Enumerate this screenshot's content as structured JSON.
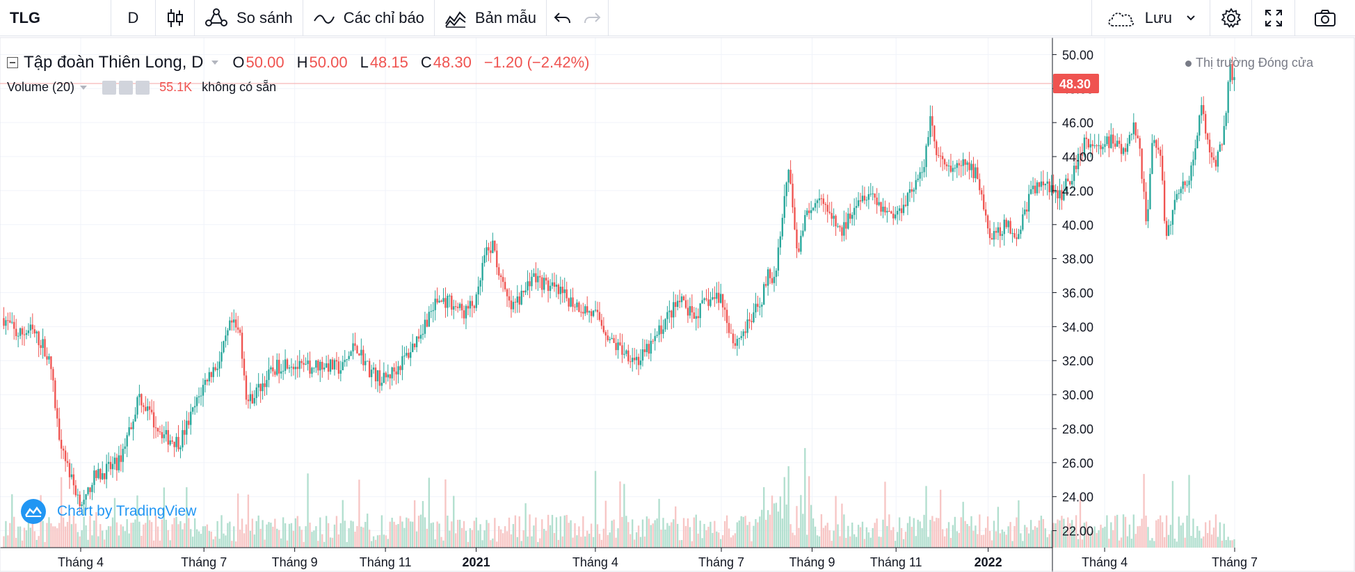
{
  "toolbar": {
    "symbol": "TLG",
    "interval": "D",
    "compare_label": "So sánh",
    "indicators_label": "Các chỉ báo",
    "templates_label": "Bản mẫu",
    "save_label": "Lưu",
    "icons": [
      "candles-icon",
      "compare-icon",
      "indicators-icon",
      "templates-icon",
      "undo-icon",
      "redo-icon",
      "cloud-icon",
      "chevron-down-icon",
      "gear-icon",
      "fullscreen-icon",
      "camera-icon"
    ]
  },
  "legend": {
    "name": "Tập đoàn Thiên Long, D",
    "open_label": "O",
    "open": "50.00",
    "high_label": "H",
    "high": "50.00",
    "low_label": "L",
    "low": "48.15",
    "close_label": "C",
    "close": "48.30",
    "change": "−1.20 (−2.42%)"
  },
  "volume_legend": {
    "label": "Volume (20)",
    "value": "55.1K",
    "na": "không có sẵn"
  },
  "market_status": "Thị trường Đóng cửa",
  "brand": "Chart by TradingView",
  "colors": {
    "up": "#26a69a",
    "down": "#ef5350",
    "up_vol": "#b2dfcf",
    "down_vol": "#f7c6c5",
    "grid": "#f0f3fa",
    "last_price_line": "#f5a5a5"
  },
  "chart_data": {
    "type": "candlestick",
    "title": "Tập đoàn Thiên Long, D",
    "ylim": [
      21,
      51
    ],
    "yticks": [
      "22.00",
      "24.00",
      "26.00",
      "28.00",
      "30.00",
      "32.00",
      "34.00",
      "36.00",
      "38.00",
      "40.00",
      "42.00",
      "44.00",
      "46.00",
      "48.00",
      "50.00"
    ],
    "last_price_label": "48.30",
    "last_price": 48.3,
    "x_tick_labels": [
      {
        "label": "Tháng 4",
        "pos": 0.058
      },
      {
        "label": "Tháng 7",
        "pos": 0.149
      },
      {
        "label": "Tháng 9",
        "pos": 0.216
      },
      {
        "label": "Tháng 11",
        "pos": 0.283
      },
      {
        "label": "2021",
        "pos": 0.35,
        "bold": true
      },
      {
        "label": "Tháng 4",
        "pos": 0.438
      },
      {
        "label": "Tháng 7",
        "pos": 0.531
      },
      {
        "label": "Tháng 9",
        "pos": 0.598
      },
      {
        "label": "Tháng 11",
        "pos": 0.66
      },
      {
        "label": "2022",
        "pos": 0.728,
        "bold": true
      },
      {
        "label": "Tháng 4",
        "pos": 0.814
      },
      {
        "label": "Tháng 7",
        "pos": 0.91
      }
    ],
    "price_path": [
      [
        0.0,
        34.5
      ],
      [
        0.01,
        33.5
      ],
      [
        0.02,
        33.8
      ],
      [
        0.03,
        32.8
      ],
      [
        0.035,
        31.5
      ],
      [
        0.04,
        28
      ],
      [
        0.045,
        26.5
      ],
      [
        0.05,
        25.0
      ],
      [
        0.055,
        24.0
      ],
      [
        0.06,
        23.5
      ],
      [
        0.065,
        25.0
      ],
      [
        0.075,
        25.5
      ],
      [
        0.085,
        26.0
      ],
      [
        0.095,
        28.5
      ],
      [
        0.1,
        30.0
      ],
      [
        0.11,
        28.5
      ],
      [
        0.12,
        27.5
      ],
      [
        0.13,
        27.2
      ],
      [
        0.14,
        29.0
      ],
      [
        0.15,
        31.0
      ],
      [
        0.16,
        32.0
      ],
      [
        0.168,
        34.2
      ],
      [
        0.175,
        33.5
      ],
      [
        0.18,
        29.5
      ],
      [
        0.19,
        30.5
      ],
      [
        0.2,
        31.5
      ],
      [
        0.21,
        32.0
      ],
      [
        0.22,
        31.5
      ],
      [
        0.235,
        31.8
      ],
      [
        0.25,
        31.5
      ],
      [
        0.26,
        33.0
      ],
      [
        0.27,
        31.5
      ],
      [
        0.28,
        30.8
      ],
      [
        0.29,
        31.5
      ],
      [
        0.3,
        32.5
      ],
      [
        0.31,
        34.0
      ],
      [
        0.32,
        35.5
      ],
      [
        0.33,
        35.5
      ],
      [
        0.34,
        34.8
      ],
      [
        0.35,
        35.5
      ],
      [
        0.355,
        38.0
      ],
      [
        0.362,
        38.8
      ],
      [
        0.368,
        36.5
      ],
      [
        0.375,
        35.0
      ],
      [
        0.385,
        36.0
      ],
      [
        0.39,
        37.0
      ],
      [
        0.4,
        36.5
      ],
      [
        0.41,
        36.0
      ],
      [
        0.42,
        35.5
      ],
      [
        0.43,
        35.0
      ],
      [
        0.44,
        34.5
      ],
      [
        0.45,
        33.0
      ],
      [
        0.46,
        32.5
      ],
      [
        0.47,
        32.0
      ],
      [
        0.48,
        33.0
      ],
      [
        0.49,
        34.5
      ],
      [
        0.5,
        35.5
      ],
      [
        0.51,
        34.5
      ],
      [
        0.52,
        35.5
      ],
      [
        0.53,
        35.8
      ],
      [
        0.54,
        33.0
      ],
      [
        0.55,
        34.0
      ],
      [
        0.56,
        35.5
      ],
      [
        0.565,
        37.0
      ],
      [
        0.57,
        36.5
      ],
      [
        0.575,
        40.0
      ],
      [
        0.58,
        43.5
      ],
      [
        0.587,
        38.5
      ],
      [
        0.595,
        41.0
      ],
      [
        0.605,
        42.0
      ],
      [
        0.61,
        40.5
      ],
      [
        0.62,
        39.5
      ],
      [
        0.63,
        41.5
      ],
      [
        0.64,
        42.0
      ],
      [
        0.65,
        41.0
      ],
      [
        0.66,
        40.5
      ],
      [
        0.67,
        42.0
      ],
      [
        0.68,
        43.0
      ],
      [
        0.685,
        46.5
      ],
      [
        0.69,
        44.0
      ],
      [
        0.7,
        43.0
      ],
      [
        0.71,
        43.5
      ],
      [
        0.72,
        43.0
      ],
      [
        0.73,
        39.0
      ],
      [
        0.74,
        40.0
      ],
      [
        0.75,
        39.5
      ],
      [
        0.76,
        42.0
      ],
      [
        0.77,
        42.5
      ],
      [
        0.78,
        41.5
      ],
      [
        0.79,
        43.0
      ],
      [
        0.8,
        45.0
      ],
      [
        0.81,
        44.5
      ],
      [
        0.82,
        45.0
      ],
      [
        0.83,
        44.0
      ],
      [
        0.835,
        46.0
      ],
      [
        0.84,
        44.5
      ],
      [
        0.845,
        40.0
      ],
      [
        0.85,
        45.5
      ],
      [
        0.855,
        44.0
      ],
      [
        0.86,
        39.0
      ],
      [
        0.865,
        41.0
      ],
      [
        0.87,
        42.5
      ],
      [
        0.875,
        42.0
      ],
      [
        0.88,
        44.0
      ],
      [
        0.885,
        47.0
      ],
      [
        0.89,
        45.0
      ],
      [
        0.895,
        43.5
      ],
      [
        0.9,
        44.5
      ],
      [
        0.904,
        47.0
      ],
      [
        0.907,
        49.5
      ],
      [
        0.91,
        48.3
      ]
    ]
  }
}
